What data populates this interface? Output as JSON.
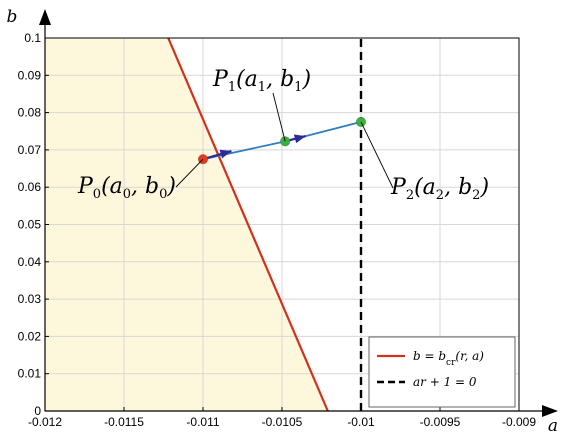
{
  "chart_data": {
    "type": "line",
    "title": "",
    "xlabel": "a",
    "ylabel": "b",
    "xlim": [
      -0.012,
      -0.009
    ],
    "ylim": [
      0,
      0.1
    ],
    "x_ticks": [
      -0.012,
      -0.0115,
      -0.011,
      -0.0105,
      -0.01,
      -0.0095,
      -0.009
    ],
    "x_tick_labels": [
      "-0.012",
      "-0.0115",
      "-0.011",
      "-0.0105",
      "-0.01",
      "-0.0095",
      "-0.009"
    ],
    "y_ticks": [
      0,
      0.01,
      0.02,
      0.03,
      0.04,
      0.05,
      0.06,
      0.07,
      0.08,
      0.09,
      0.1
    ],
    "y_tick_labels": [
      "0",
      "0.01",
      "0.02",
      "0.03",
      "0.04",
      "0.05",
      "0.06",
      "0.07",
      "0.08",
      "0.09",
      "0.1"
    ],
    "grid": true,
    "legend_position": "bottom-right",
    "series": [
      {
        "name": "b = b_cr(r, a)",
        "label_html": "b = b<tspan baseline-shift=\"sub\" font-size=\"9\" font-style=\"normal\">cr</tspan>(r, a)",
        "style": "solid",
        "color": "#d0321e",
        "x": [
          -0.01122,
          -0.01021
        ],
        "y": [
          0.1,
          0
        ]
      },
      {
        "name": "ar + 1 = 0",
        "style": "dashed",
        "color": "#000000",
        "x": [
          -0.01,
          -0.01
        ],
        "y": [
          0,
          0.1
        ]
      }
    ],
    "stable_region_color": "#fdf8dc",
    "path_color": "#2f7fc1",
    "arrow_color": "#2a2a9a",
    "points": [
      {
        "id": "P0",
        "label": "P0(a0, b0)",
        "a": -0.011,
        "b": 0.0675,
        "color": "#e23a22"
      },
      {
        "id": "P1",
        "label": "P1(a1, b1)",
        "a": -0.01048,
        "b": 0.0723,
        "color": "#3db03d"
      },
      {
        "id": "P2",
        "label": "P2(a2, b2)",
        "a": -0.01,
        "b": 0.0775,
        "color": "#3db03d"
      }
    ],
    "arrows": [
      {
        "from_a": -0.011,
        "from_b": 0.0675,
        "to_a": -0.01082,
        "to_b": 0.0697
      },
      {
        "from_a": -0.01048,
        "from_b": 0.0723,
        "to_a": -0.01035,
        "to_b": 0.0737
      }
    ]
  }
}
